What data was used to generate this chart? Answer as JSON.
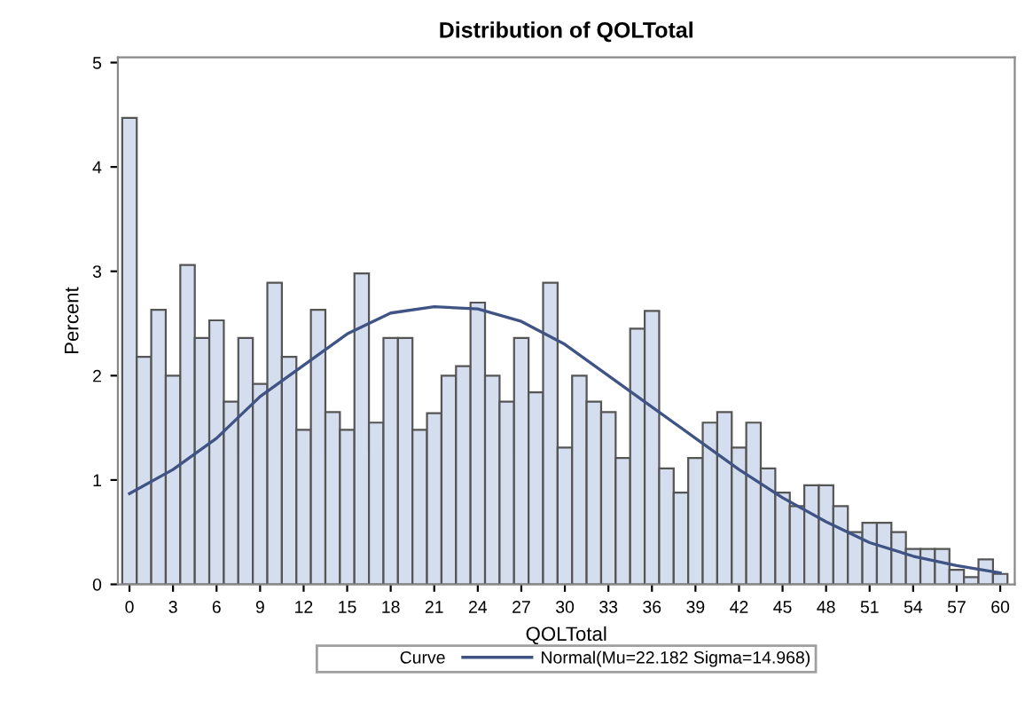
{
  "chart_data": {
    "type": "histogram",
    "title": "Distribution of QOLTotal",
    "xlabel": "QOLTotal",
    "ylabel": "Percent",
    "bins": [
      -0.5,
      0.5,
      1.5,
      2.5,
      3.5,
      4.5,
      5.5,
      6.5,
      7.5,
      8.5,
      9.5,
      10.5,
      11.5,
      12.5,
      13.5,
      14.5,
      15.5,
      16.5,
      17.5,
      18.5,
      19.5,
      20.5,
      21.5,
      22.5,
      23.5,
      24.5,
      25.5,
      26.5,
      27.5,
      28.5,
      29.5,
      30.5,
      31.5,
      32.5,
      33.5,
      34.5,
      35.5,
      36.5,
      37.5,
      38.5,
      39.5,
      40.5,
      41.5,
      42.5,
      43.5,
      44.5,
      45.5,
      46.5,
      47.5,
      48.5,
      49.5,
      50.5,
      51.5,
      52.5,
      53.5,
      54.5,
      55.5,
      56.5,
      57.5,
      58.5,
      59.5,
      60.5
    ],
    "values": [
      4.47,
      2.18,
      2.63,
      2.0,
      3.06,
      2.36,
      2.53,
      1.75,
      2.36,
      1.92,
      2.89,
      2.18,
      1.48,
      2.63,
      1.65,
      1.48,
      2.98,
      1.55,
      2.36,
      2.36,
      1.48,
      1.64,
      2.0,
      2.09,
      2.7,
      2.0,
      1.75,
      2.36,
      1.84,
      2.89,
      1.31,
      2.0,
      1.75,
      1.65,
      1.21,
      2.45,
      2.62,
      1.11,
      0.88,
      1.21,
      1.55,
      1.65,
      1.31,
      1.55,
      1.11,
      0.88,
      0.75,
      0.95,
      0.95,
      0.75,
      0.5,
      0.59,
      0.59,
      0.5,
      0.34,
      0.34,
      0.34,
      0.14,
      0.07,
      0.24,
      0.1
    ],
    "color": "#d5deee",
    "series": [
      {
        "type": "line",
        "name": "Normal(Mu=22.182 Sigma=14.968)",
        "color": "#3f5384",
        "x": [
          0,
          3,
          6,
          9,
          12,
          15,
          18,
          21,
          24,
          27,
          30,
          33,
          36,
          39,
          42,
          45,
          48,
          51,
          54,
          57,
          60
        ],
        "values": [
          0.87,
          1.1,
          1.4,
          1.8,
          2.1,
          2.4,
          2.6,
          2.66,
          2.64,
          2.52,
          2.3,
          2.0,
          1.7,
          1.4,
          1.1,
          0.83,
          0.6,
          0.4,
          0.27,
          0.18,
          0.11
        ]
      }
    ],
    "legend_title": "Curve",
    "legend": "bottom",
    "grid": false,
    "xlim": [
      -0.8,
      61
    ],
    "xticks": [
      0,
      3,
      6,
      9,
      12,
      15,
      18,
      21,
      24,
      27,
      30,
      33,
      36,
      39,
      42,
      45,
      48,
      51,
      54,
      57,
      60
    ],
    "ylim": [
      0,
      5.05
    ],
    "yticks": [
      0,
      1,
      2,
      3,
      4,
      5
    ]
  }
}
